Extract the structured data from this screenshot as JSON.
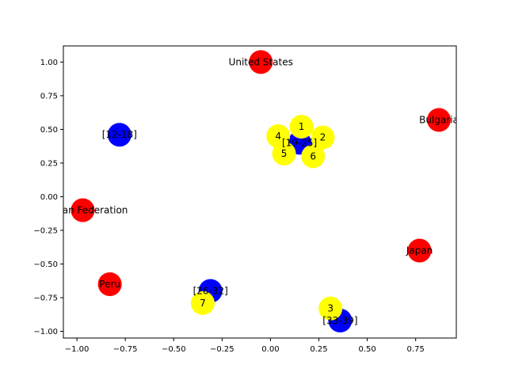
{
  "chart_data": {
    "type": "scatter",
    "title": "",
    "xlabel": "",
    "ylabel": "",
    "xlim": [
      -1.07,
      0.96
    ],
    "ylim": [
      -1.05,
      1.12
    ],
    "grid": false,
    "xticks": [
      -1.0,
      -0.75,
      -0.5,
      -0.25,
      0.0,
      0.25,
      0.5,
      0.75
    ],
    "xtick_labels": [
      "−1.00",
      "−0.75",
      "−0.50",
      "−0.25",
      "0.00",
      "0.25",
      "0.50",
      "0.75"
    ],
    "yticks": [
      1.0,
      0.75,
      0.5,
      0.25,
      0.0,
      -0.25,
      -0.5,
      -0.75,
      -1.0
    ],
    "ytick_labels": [
      "1.00",
      "0.75",
      "0.50",
      "0.25",
      "0.00",
      "−0.25",
      "−0.50",
      "−0.75",
      "−1.00"
    ],
    "colors": {
      "country": "#ff0000",
      "group": "#0000ff",
      "member": "#ffff00"
    },
    "nodes": [
      {
        "label": "United States",
        "x": -0.05,
        "y": 1.0,
        "kind": "country"
      },
      {
        "label": "Bulgaria",
        "x": 0.87,
        "y": 0.57,
        "kind": "country"
      },
      {
        "label": "Russian Federation",
        "x": -0.97,
        "y": -0.1,
        "kind": "country"
      },
      {
        "label": "Japan",
        "x": 0.77,
        "y": -0.4,
        "kind": "country"
      },
      {
        "label": "Peru",
        "x": -0.83,
        "y": -0.65,
        "kind": "country"
      },
      {
        "label": "[12-18]",
        "x": -0.78,
        "y": 0.46,
        "kind": "group"
      },
      {
        "label": "[19-25]",
        "x": 0.15,
        "y": 0.4,
        "kind": "group"
      },
      {
        "label": "[26-32]",
        "x": -0.31,
        "y": -0.7,
        "kind": "group"
      },
      {
        "label": "[33-39]",
        "x": 0.36,
        "y": -0.92,
        "kind": "group"
      },
      {
        "label": "1",
        "x": 0.16,
        "y": 0.52,
        "kind": "member"
      },
      {
        "label": "2",
        "x": 0.27,
        "y": 0.44,
        "kind": "member"
      },
      {
        "label": "4",
        "x": 0.04,
        "y": 0.45,
        "kind": "member"
      },
      {
        "label": "5",
        "x": 0.07,
        "y": 0.32,
        "kind": "member"
      },
      {
        "label": "6",
        "x": 0.22,
        "y": 0.3,
        "kind": "member"
      },
      {
        "label": "3",
        "x": 0.31,
        "y": -0.83,
        "kind": "member"
      },
      {
        "label": "7",
        "x": -0.35,
        "y": -0.79,
        "kind": "member"
      }
    ],
    "edges": [
      {
        "from": "1",
        "to": "[19-25]"
      },
      {
        "from": "2",
        "to": "[19-25]"
      },
      {
        "from": "4",
        "to": "[19-25]"
      },
      {
        "from": "5",
        "to": "[19-25]"
      },
      {
        "from": "6",
        "to": "[19-25]"
      },
      {
        "from": "3",
        "to": "[33-39]"
      },
      {
        "from": "7",
        "to": "[26-32]"
      }
    ]
  }
}
